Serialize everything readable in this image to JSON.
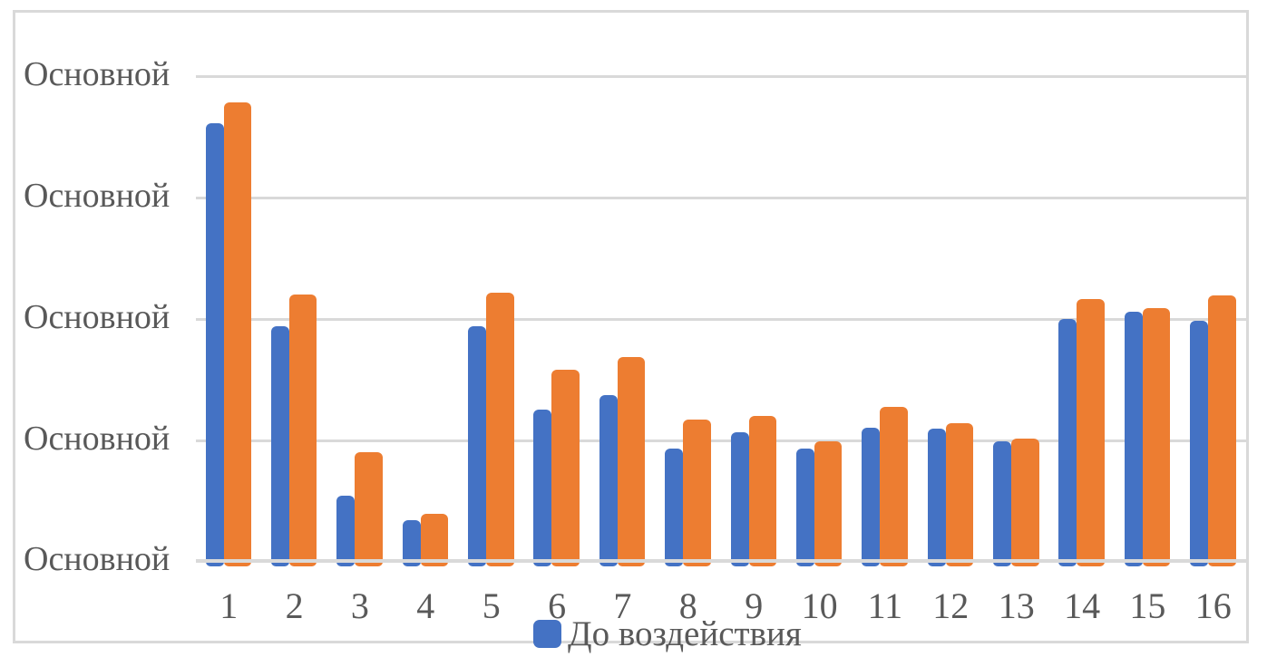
{
  "chart_data": {
    "type": "bar",
    "title": "",
    "categories": [
      "1",
      "2",
      "3",
      "4",
      "5",
      "6",
      "7",
      "8",
      "9",
      "10",
      "11",
      "12",
      "13",
      "14",
      "15",
      "16"
    ],
    "series": [
      {
        "name": "До воздействия",
        "color": "#4472C4",
        "values": [
          3.61,
          1.94,
          0.54,
          0.34,
          1.94,
          1.25,
          1.37,
          0.93,
          1.06,
          0.93,
          1.1,
          1.09,
          0.99,
          2.0,
          2.06,
          1.98
        ]
      },
      {
        "name": "",
        "color": "#ED7D31",
        "values": [
          3.78,
          2.2,
          0.9,
          0.39,
          2.21,
          1.58,
          1.68,
          1.17,
          1.2,
          0.99,
          1.27,
          1.14,
          1.01,
          2.16,
          2.09,
          2.19
        ]
      }
    ],
    "xlabel": "",
    "ylabel": "",
    "y_axis": {
      "tick_labels": [
        "Основной",
        "Основной",
        "Основной",
        "Основной",
        "Основной"
      ],
      "ylim": [
        0,
        4
      ],
      "gridlines": true
    },
    "legend": {
      "position": "bottom",
      "items": [
        {
          "label": "До воздействия",
          "color": "#4472C4"
        }
      ]
    }
  },
  "colors": {
    "series1": "#4472C4",
    "series2": "#ED7D31",
    "gridline": "#D9D9D9",
    "frame_border": "#D9D9D9",
    "text": "#595959",
    "background": "#FFFFFF"
  }
}
